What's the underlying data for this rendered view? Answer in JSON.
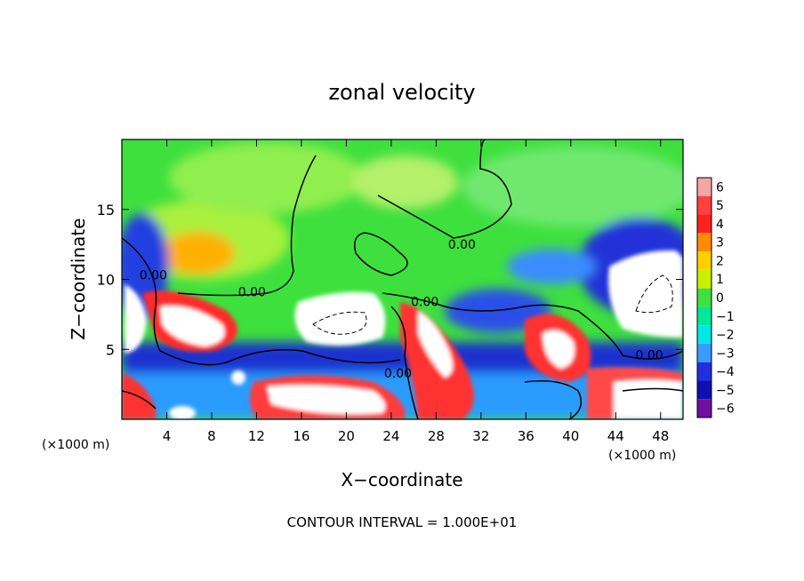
{
  "chart_data": {
    "type": "heatmap",
    "title": "zonal velocity",
    "xlabel": "X−coordinate",
    "ylabel": "Z−coordinate",
    "x_unit_label": "(×1000 m)",
    "x_unit_label_right": "(×1000 m)",
    "xlim": [
      0,
      50
    ],
    "ylim": [
      0,
      20
    ],
    "x_ticks": [
      4,
      8,
      12,
      16,
      20,
      24,
      28,
      32,
      36,
      40,
      44,
      48
    ],
    "y_ticks": [
      5,
      10,
      15
    ],
    "colorbar": {
      "ticks": [
        6,
        5,
        4,
        3,
        2,
        1,
        0,
        -1,
        -2,
        -3,
        -4,
        -5,
        -6
      ],
      "tick_labels": [
        "6",
        "5",
        "4",
        "3",
        "2",
        "1",
        "0",
        "−1",
        "−2",
        "−3",
        "−4",
        "−5",
        "−6"
      ],
      "colors": [
        "#f4a6a6",
        "#ff4040",
        "#ff2020",
        "#ff8c00",
        "#ffd000",
        "#c8f000",
        "#40e040",
        "#00e89a",
        "#00e8e8",
        "#3a9bff",
        "#2030e0",
        "#1010b0",
        "#7010a0"
      ]
    },
    "contour_labels": [
      {
        "text": "0.00",
        "x": 2.8,
        "y": 10.0
      },
      {
        "text": "0.00",
        "x": 11.6,
        "y": 8.8
      },
      {
        "text": "0.00",
        "x": 24.6,
        "y": 3.0
      },
      {
        "text": "0.00",
        "x": 27.0,
        "y": 8.1
      },
      {
        "text": "0.00",
        "x": 30.3,
        "y": 12.2
      },
      {
        "text": "0.00",
        "x": 47.0,
        "y": 4.3
      }
    ],
    "footer": "CONTOUR INTERVAL = 1.000E+01"
  }
}
